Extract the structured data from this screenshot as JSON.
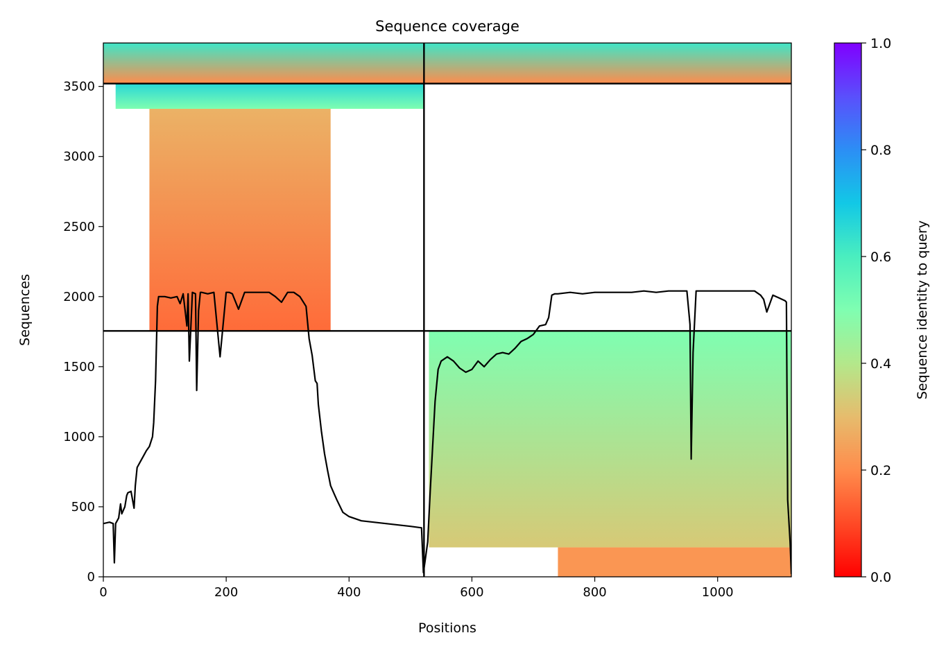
{
  "chart_data": {
    "type": "heatmap",
    "title": "Sequence coverage",
    "xlabel": "Positions",
    "ylabel": "Sequences",
    "colorbar_label": "Sequence identity to query",
    "xlim": [
      0,
      1120
    ],
    "ylim": [
      0,
      3810
    ],
    "x_ticks": [
      0,
      200,
      400,
      600,
      800,
      1000
    ],
    "y_ticks": [
      0,
      500,
      1000,
      1500,
      2000,
      2500,
      3000,
      3500
    ],
    "colorbar_ticks": [
      "0.0",
      "0.2",
      "0.4",
      "0.6",
      "0.8",
      "1.0"
    ],
    "colorbar_range": [
      0,
      1
    ],
    "colormap": "rainbow_r",
    "grid": false,
    "chain_divider_x": 522,
    "group_divider_y": [
      1755,
      3520
    ],
    "coverage_blocks": [
      {
        "x_start": 0,
        "x_end": 522,
        "y_start": 3520,
        "y_end": 3810,
        "identity_top": 0.62,
        "identity_bottom": 0.2
      },
      {
        "x_start": 20,
        "x_end": 522,
        "y_start": 3340,
        "y_end": 3520,
        "identity_top": 0.66,
        "identity_bottom": 0.5
      },
      {
        "x_start": 75,
        "x_end": 370,
        "y_start": 1755,
        "y_end": 3340,
        "identity_top": 0.28,
        "identity_bottom": 0.15
      },
      {
        "x_start": 522,
        "x_end": 1120,
        "y_start": 3520,
        "y_end": 3810,
        "identity_top": 0.62,
        "identity_bottom": 0.2
      },
      {
        "x_start": 530,
        "x_end": 1120,
        "y_start": 210,
        "y_end": 1755,
        "identity_top": 0.5,
        "identity_bottom": 0.33
      },
      {
        "x_start": 740,
        "x_end": 1120,
        "y_start": 0,
        "y_end": 210,
        "identity_top": 0.22,
        "identity_bottom": 0.22
      }
    ],
    "coverage_line": {
      "x": [
        0,
        10,
        16,
        18,
        20,
        25,
        28,
        30,
        35,
        38,
        40,
        45,
        50,
        52,
        55,
        60,
        65,
        70,
        75,
        80,
        82,
        85,
        88,
        90,
        100,
        110,
        120,
        125,
        130,
        136,
        138,
        140,
        145,
        150,
        152,
        155,
        158,
        160,
        170,
        180,
        190,
        200,
        202,
        205,
        210,
        220,
        230,
        236,
        240,
        250,
        260,
        270,
        280,
        290,
        300,
        305,
        310,
        320,
        330,
        335,
        340,
        345,
        348,
        350,
        355,
        360,
        365,
        370,
        375,
        380,
        390,
        400,
        420,
        440,
        460,
        480,
        500,
        518,
        521,
        524,
        528,
        532,
        540,
        545,
        550,
        560,
        570,
        580,
        590,
        600,
        610,
        620,
        630,
        640,
        650,
        660,
        670,
        680,
        690,
        700,
        710,
        720,
        725,
        730,
        735,
        740,
        760,
        780,
        800,
        820,
        840,
        860,
        880,
        900,
        920,
        940,
        950,
        955,
        957,
        960,
        965,
        980,
        1000,
        1020,
        1040,
        1060,
        1070,
        1075,
        1080,
        1090,
        1100,
        1110,
        1112,
        1114,
        1118,
        1120
      ],
      "y": [
        380,
        390,
        380,
        100,
        380,
        420,
        520,
        450,
        500,
        580,
        600,
        610,
        490,
        650,
        780,
        820,
        860,
        900,
        930,
        1000,
        1100,
        1400,
        1930,
        2000,
        2000,
        1990,
        2000,
        1950,
        2020,
        1790,
        2020,
        1540,
        2030,
        2020,
        1330,
        1900,
        2030,
        2030,
        2020,
        2030,
        1570,
        2030,
        2030,
        2030,
        2020,
        1910,
        2030,
        2030,
        2030,
        2030,
        2030,
        2030,
        2000,
        1960,
        2030,
        2030,
        2030,
        2000,
        1930,
        1700,
        1580,
        1400,
        1380,
        1230,
        1040,
        880,
        760,
        650,
        600,
        550,
        460,
        430,
        400,
        390,
        380,
        370,
        360,
        350,
        30,
        120,
        250,
        600,
        1250,
        1480,
        1540,
        1570,
        1540,
        1490,
        1460,
        1480,
        1540,
        1500,
        1550,
        1590,
        1600,
        1590,
        1630,
        1680,
        1700,
        1730,
        1790,
        1800,
        1850,
        2010,
        2020,
        2020,
        2030,
        2020,
        2030,
        2030,
        2030,
        2030,
        2040,
        2030,
        2040,
        2040,
        2040,
        1800,
        840,
        1600,
        2040,
        2040,
        2040,
        2040,
        2040,
        2040,
        2010,
        1980,
        1890,
        2010,
        1990,
        1970,
        1960,
        550,
        250,
        20
      ]
    }
  }
}
